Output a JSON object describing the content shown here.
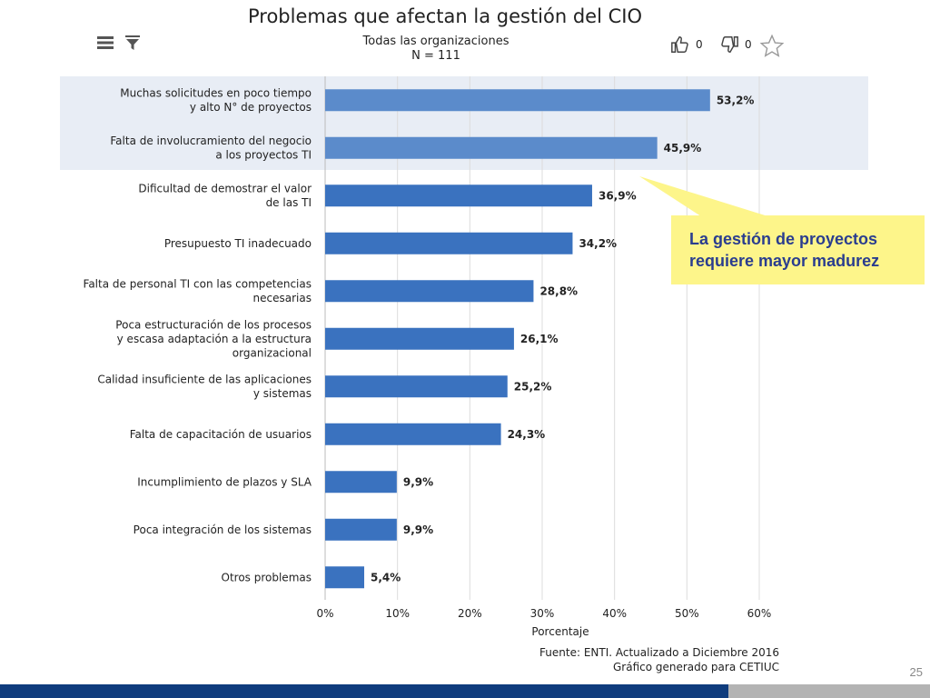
{
  "toolbar": {
    "menu_icon": "hamburger-menu-icon",
    "filter_icon": "filter-icon",
    "likes": "0",
    "dislikes": "0",
    "like_icon": "thumbs-up-icon",
    "dislike_icon": "thumbs-down-icon",
    "favorite_icon": "star-icon"
  },
  "callout": {
    "line1": "La gestión de proyectos",
    "line2": "requiere mayor madurez",
    "background": "#fdf58a",
    "text_color": "#2a3d8f"
  },
  "source": {
    "line1": "Fuente: ENTI. Actualizado a Diciembre 2016",
    "line2": "Gráfico generado para CETIUC"
  },
  "page_number": "25",
  "colors": {
    "bar": "#3a72bf",
    "bar_highlight": "#5b8bcb",
    "highlight_band": "#e8edf5",
    "footer_blue": "#0f3c7d",
    "footer_gray": "#b3b3b3"
  },
  "chart_data": {
    "type": "bar",
    "orientation": "horizontal",
    "title": "Problemas que afectan la gestión del CIO",
    "subtitle": [
      "Todas las organizaciones",
      "N = 111"
    ],
    "categories": [
      [
        "Muchas solicitudes en poco tiempo",
        "y alto N° de proyectos"
      ],
      [
        "Falta de involucramiento del negocio",
        "a los proyectos TI"
      ],
      [
        "Dificultad de demostrar el valor",
        "de las TI"
      ],
      [
        "Presupuesto TI inadecuado"
      ],
      [
        "Falta de personal TI con las competencias",
        "necesarias"
      ],
      [
        "Poca estructuración de los procesos",
        "y escasa adaptación a la estructura",
        "organizacional"
      ],
      [
        "Calidad insuficiente de las aplicaciones",
        "y sistemas"
      ],
      [
        "Falta de capacitación de usuarios"
      ],
      [
        "Incumplimiento de plazos y SLA"
      ],
      [
        "Poca integración de los sistemas"
      ],
      [
        "Otros problemas"
      ]
    ],
    "values": [
      53.2,
      45.9,
      36.9,
      34.2,
      28.8,
      26.1,
      25.2,
      24.3,
      9.9,
      9.9,
      5.4
    ],
    "value_labels": [
      "53,2%",
      "45,9%",
      "36,9%",
      "34,2%",
      "28,8%",
      "26,1%",
      "25,2%",
      "24,3%",
      "9,9%",
      "9,9%",
      "5,4%"
    ],
    "highlighted": [
      0,
      1
    ],
    "xticks": [
      "0%",
      "10%",
      "20%",
      "30%",
      "40%",
      "50%",
      "60%"
    ],
    "xlabel": "Porcentaje",
    "ylabel": "",
    "xlim": [
      0,
      60
    ],
    "grid": true,
    "legend": "none"
  }
}
